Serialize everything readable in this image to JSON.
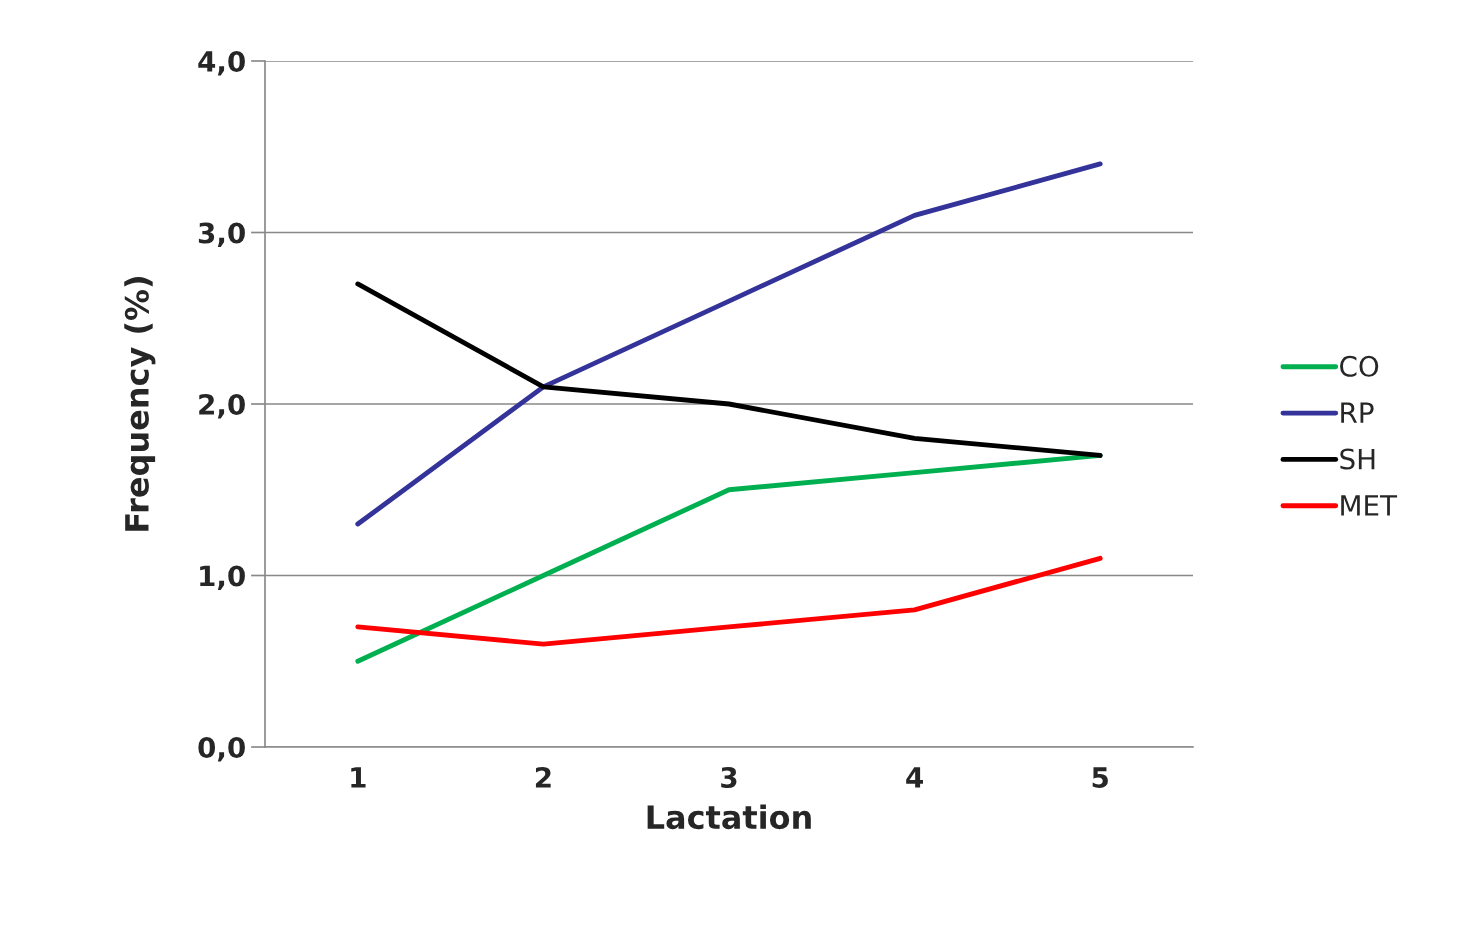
{
  "chart_data": {
    "type": "line",
    "xlabel": "Lactation",
    "ylabel": "Frequency (%)",
    "categories": [
      "1",
      "2",
      "3",
      "4",
      "5"
    ],
    "series": [
      {
        "name": "CO",
        "color": "#00b050",
        "values": [
          0.5,
          1.0,
          1.5,
          1.6,
          1.7
        ]
      },
      {
        "name": "RP",
        "color": "#333399",
        "values": [
          1.3,
          2.1,
          2.6,
          3.1,
          3.4
        ]
      },
      {
        "name": "SH",
        "color": "#000000",
        "values": [
          2.7,
          2.1,
          2.0,
          1.8,
          1.7
        ]
      },
      {
        "name": "MET",
        "color": "#ff0000",
        "values": [
          0.7,
          0.6,
          0.7,
          0.8,
          1.1
        ]
      }
    ],
    "ylim": [
      0,
      4
    ],
    "yticks": [
      {
        "value": 0,
        "label": "0,0"
      },
      {
        "value": 1,
        "label": "1,0"
      },
      {
        "value": 2,
        "label": "2,0"
      },
      {
        "value": 3,
        "label": "3,0"
      },
      {
        "value": 4,
        "label": "4,0"
      }
    ],
    "grid": "y",
    "legend": "right",
    "marker": "none",
    "line_style": "solid"
  }
}
